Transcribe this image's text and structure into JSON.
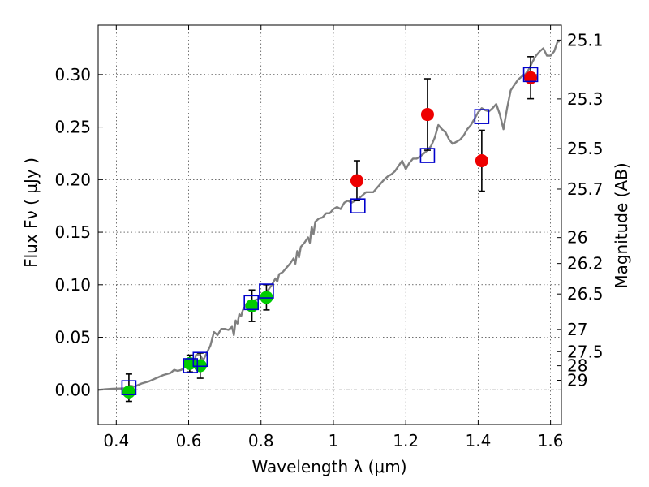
{
  "chart_data": {
    "type": "scatter",
    "xlabel": "Wavelength  λ (μm)",
    "ylabel": "Flux  Fν  ( μJy )",
    "ylabel_right": "Magnitude (AB)",
    "xlim": [
      0.35,
      1.63
    ],
    "ylim": [
      -0.033,
      0.347
    ],
    "x_ticks": [
      0.4,
      0.6,
      0.8,
      1.0,
      1.2,
      1.4,
      1.6
    ],
    "x_tick_labels": [
      "0.4",
      "0.6",
      "0.8",
      "1",
      "1.2",
      "1.4",
      "1.6"
    ],
    "y_ticks": [
      0.0,
      0.05,
      0.1,
      0.15,
      0.2,
      0.25,
      0.3
    ],
    "y_tick_labels": [
      "0.00",
      "0.05",
      "0.10",
      "0.15",
      "0.20",
      "0.25",
      "0.30"
    ],
    "right_ticks": [
      {
        "label": "25.1",
        "flux": 0.3328
      },
      {
        "label": "25.3",
        "flux": 0.2768
      },
      {
        "label": "25.5",
        "flux": 0.2296
      },
      {
        "label": "25.7",
        "flux": 0.191
      },
      {
        "label": "26",
        "flux": 0.1449
      },
      {
        "label": "26.2",
        "flux": 0.1202
      },
      {
        "label": "26.5",
        "flux": 0.0912
      },
      {
        "label": "27",
        "flux": 0.0575
      },
      {
        "label": "27.5",
        "flux": 0.0363
      },
      {
        "label": "28",
        "flux": 0.0229
      },
      {
        "label": "29",
        "flux": 0.0091
      }
    ],
    "grid": true,
    "colors": {
      "model": "#808080",
      "green": "#00cc00",
      "red": "#ee0000",
      "square": "#0000cc",
      "errorbar": "#000000",
      "zero_line": "#000000"
    },
    "series": [
      {
        "kind": "line",
        "points": [
          [
            0.35,
            0.0
          ],
          [
            0.37,
            0.0005
          ],
          [
            0.39,
            0.001
          ],
          [
            0.41,
            0.0012
          ],
          [
            0.43,
            0.0015
          ],
          [
            0.44,
            0.004
          ],
          [
            0.45,
            0.003
          ],
          [
            0.47,
            0.006
          ],
          [
            0.49,
            0.008
          ],
          [
            0.51,
            0.011
          ],
          [
            0.53,
            0.014
          ],
          [
            0.55,
            0.016
          ],
          [
            0.56,
            0.019
          ],
          [
            0.57,
            0.018
          ],
          [
            0.58,
            0.019
          ],
          [
            0.59,
            0.022
          ],
          [
            0.6,
            0.024
          ],
          [
            0.61,
            0.027
          ],
          [
            0.615,
            0.024
          ],
          [
            0.62,
            0.033
          ],
          [
            0.63,
            0.034
          ],
          [
            0.64,
            0.028
          ],
          [
            0.65,
            0.035
          ],
          [
            0.66,
            0.042
          ],
          [
            0.67,
            0.055
          ],
          [
            0.68,
            0.052
          ],
          [
            0.69,
            0.058
          ],
          [
            0.7,
            0.058
          ],
          [
            0.71,
            0.057
          ],
          [
            0.72,
            0.06
          ],
          [
            0.725,
            0.052
          ],
          [
            0.73,
            0.066
          ],
          [
            0.735,
            0.063
          ],
          [
            0.74,
            0.072
          ],
          [
            0.745,
            0.07
          ],
          [
            0.75,
            0.076
          ],
          [
            0.76,
            0.082
          ],
          [
            0.77,
            0.078
          ],
          [
            0.78,
            0.085
          ],
          [
            0.79,
            0.086
          ],
          [
            0.8,
            0.088
          ],
          [
            0.81,
            0.092
          ],
          [
            0.82,
            0.095
          ],
          [
            0.83,
            0.1
          ],
          [
            0.84,
            0.106
          ],
          [
            0.845,
            0.103
          ],
          [
            0.85,
            0.11
          ],
          [
            0.86,
            0.112
          ],
          [
            0.87,
            0.116
          ],
          [
            0.88,
            0.12
          ],
          [
            0.89,
            0.125
          ],
          [
            0.895,
            0.12
          ],
          [
            0.9,
            0.132
          ],
          [
            0.905,
            0.126
          ],
          [
            0.91,
            0.136
          ],
          [
            0.92,
            0.14
          ],
          [
            0.93,
            0.145
          ],
          [
            0.935,
            0.14
          ],
          [
            0.94,
            0.155
          ],
          [
            0.945,
            0.148
          ],
          [
            0.95,
            0.16
          ],
          [
            0.96,
            0.163
          ],
          [
            0.97,
            0.164
          ],
          [
            0.98,
            0.168
          ],
          [
            0.99,
            0.168
          ],
          [
            1.0,
            0.172
          ],
          [
            1.01,
            0.174
          ],
          [
            1.02,
            0.172
          ],
          [
            1.03,
            0.178
          ],
          [
            1.04,
            0.18
          ],
          [
            1.05,
            0.178
          ],
          [
            1.06,
            0.18
          ],
          [
            1.07,
            0.182
          ],
          [
            1.08,
            0.185
          ],
          [
            1.09,
            0.188
          ],
          [
            1.1,
            0.188
          ],
          [
            1.11,
            0.188
          ],
          [
            1.12,
            0.192
          ],
          [
            1.13,
            0.196
          ],
          [
            1.14,
            0.2
          ],
          [
            1.15,
            0.203
          ],
          [
            1.16,
            0.205
          ],
          [
            1.17,
            0.208
          ],
          [
            1.18,
            0.213
          ],
          [
            1.19,
            0.218
          ],
          [
            1.2,
            0.21
          ],
          [
            1.21,
            0.216
          ],
          [
            1.22,
            0.22
          ],
          [
            1.23,
            0.22
          ],
          [
            1.24,
            0.222
          ],
          [
            1.25,
            0.225
          ],
          [
            1.26,
            0.228
          ],
          [
            1.27,
            0.232
          ],
          [
            1.28,
            0.24
          ],
          [
            1.29,
            0.252
          ],
          [
            1.3,
            0.248
          ],
          [
            1.31,
            0.245
          ],
          [
            1.32,
            0.238
          ],
          [
            1.33,
            0.234
          ],
          [
            1.34,
            0.236
          ],
          [
            1.35,
            0.238
          ],
          [
            1.36,
            0.242
          ],
          [
            1.37,
            0.248
          ],
          [
            1.38,
            0.252
          ],
          [
            1.39,
            0.258
          ],
          [
            1.4,
            0.264
          ],
          [
            1.41,
            0.268
          ],
          [
            1.42,
            0.266
          ],
          [
            1.43,
            0.265
          ],
          [
            1.44,
            0.268
          ],
          [
            1.45,
            0.272
          ],
          [
            1.46,
            0.262
          ],
          [
            1.47,
            0.248
          ],
          [
            1.48,
            0.268
          ],
          [
            1.49,
            0.285
          ],
          [
            1.5,
            0.29
          ],
          [
            1.51,
            0.295
          ],
          [
            1.52,
            0.298
          ],
          [
            1.53,
            0.3
          ],
          [
            1.54,
            0.305
          ],
          [
            1.55,
            0.312
          ],
          [
            1.56,
            0.318
          ],
          [
            1.57,
            0.322
          ],
          [
            1.58,
            0.325
          ],
          [
            1.59,
            0.318
          ],
          [
            1.6,
            0.318
          ],
          [
            1.61,
            0.322
          ],
          [
            1.62,
            0.332
          ],
          [
            1.625,
            0.331
          ]
        ]
      },
      {
        "kind": "circle",
        "color": "green",
        "points": [
          {
            "x": 0.435,
            "y": -0.002,
            "err": 0.0
          },
          {
            "x": 0.603,
            "y": 0.025,
            "err": 0.008
          },
          {
            "x": 0.632,
            "y": 0.023,
            "err": 0.012
          },
          {
            "x": 0.775,
            "y": 0.08,
            "err": 0.015
          },
          {
            "x": 0.815,
            "y": 0.088,
            "err": 0.012
          }
        ]
      },
      {
        "kind": "circle",
        "color": "red",
        "points": [
          {
            "x": 1.065,
            "y": 0.199,
            "err": 0.019
          },
          {
            "x": 1.26,
            "y": 0.262,
            "err": 0.034
          },
          {
            "x": 1.41,
            "y": 0.218,
            "err": 0.029
          },
          {
            "x": 1.545,
            "y": 0.297,
            "err": 0.02
          }
        ]
      },
      {
        "kind": "square",
        "color": "square",
        "points": [
          {
            "x": 0.435,
            "y": 0.002,
            "err": 0.013
          },
          {
            "x": 0.605,
            "y": 0.023,
            "err": 0.0
          },
          {
            "x": 0.632,
            "y": 0.029,
            "err": 0.0
          },
          {
            "x": 0.773,
            "y": 0.083,
            "err": 0.0
          },
          {
            "x": 0.815,
            "y": 0.094,
            "err": 0.0
          },
          {
            "x": 1.068,
            "y": 0.175,
            "err": 0.0
          },
          {
            "x": 1.26,
            "y": 0.223,
            "err": 0.0
          },
          {
            "x": 1.41,
            "y": 0.26,
            "err": 0.0
          },
          {
            "x": 1.545,
            "y": 0.3,
            "err": 0.0
          }
        ]
      }
    ]
  }
}
